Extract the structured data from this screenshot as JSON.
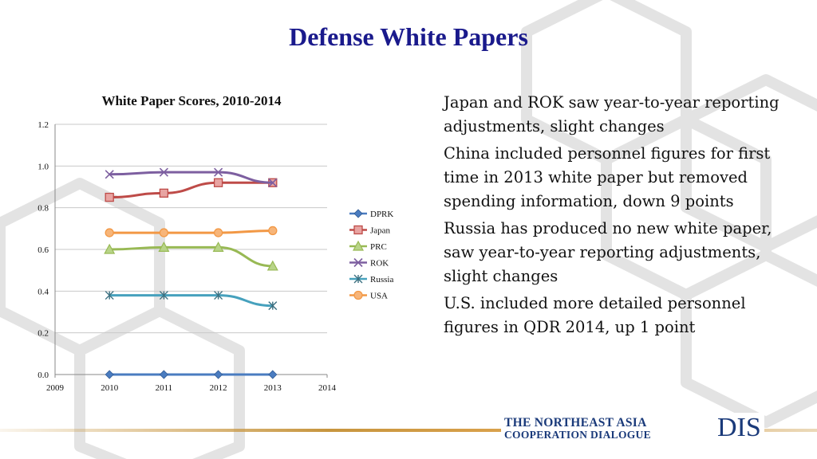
{
  "slide": {
    "title": "Defense White Papers"
  },
  "bullets": [
    "Japan and ROK saw year-to-year reporting adjustments, slight changes",
    "China included personnel figures for first time in 2013 white paper but removed spending information, down 9 points",
    "Russia has produced no new white paper, saw year-to-year reporting adjustments, slight changes",
    "U.S. included more detailed personnel figures in QDR 2014, up 1 point"
  ],
  "footer": {
    "org_line1": "THE NORTHEAST ASIA",
    "org_line2": "COOPERATION DIALOGUE",
    "org_abbrev": "DIS"
  },
  "chart_data": {
    "type": "line",
    "title": "White Paper Scores, 2010-2014",
    "xlabel": "",
    "ylabel": "",
    "x_ticks": [
      "2009",
      "2010",
      "2011",
      "2012",
      "2013",
      "2014"
    ],
    "y_ticks": [
      "0.0",
      "0.2",
      "0.4",
      "0.6",
      "0.8",
      "1.0",
      "1.2"
    ],
    "xlim": [
      2009,
      2014
    ],
    "ylim": [
      0,
      1.2
    ],
    "x": [
      2010,
      2011,
      2012,
      2013
    ],
    "grid": true,
    "legend_position": "right",
    "series": [
      {
        "name": "DPRK",
        "values": [
          0.0,
          0.0,
          0.0,
          0.0
        ],
        "color": "#4a7cc0",
        "marker": "diamond"
      },
      {
        "name": "Japan",
        "values": [
          0.85,
          0.87,
          0.92,
          0.92
        ],
        "color": "#be4b48",
        "marker": "square"
      },
      {
        "name": "PRC",
        "values": [
          0.6,
          0.61,
          0.61,
          0.52
        ],
        "color": "#98b954",
        "marker": "triangle"
      },
      {
        "name": "ROK",
        "values": [
          0.96,
          0.97,
          0.97,
          0.92
        ],
        "color": "#7d5fa0",
        "marker": "x"
      },
      {
        "name": "Russia",
        "values": [
          0.38,
          0.38,
          0.38,
          0.33
        ],
        "color": "#46a1bd",
        "marker": "star"
      },
      {
        "name": "USA",
        "values": [
          0.68,
          0.68,
          0.68,
          0.69
        ],
        "color": "#f29845",
        "marker": "circle"
      }
    ]
  }
}
